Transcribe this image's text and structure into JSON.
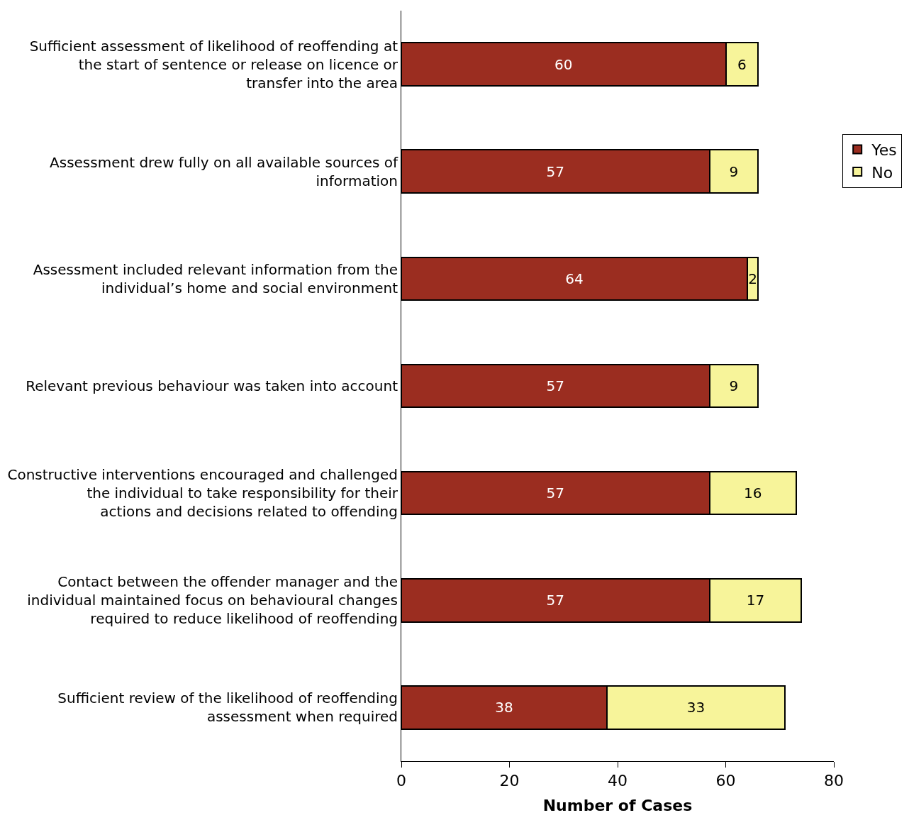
{
  "chart_data": {
    "type": "bar",
    "orientation": "horizontal",
    "stacked": true,
    "categories": [
      "Sufficient assessment of likelihood of reoffending at the start of sentence or release on licence or transfer into the area",
      "Assessment drew fully on all available sources of information",
      "Assessment included relevant information from the individual’s home and social environment",
      "Relevant previous behaviour was taken into account",
      "Constructive interventions encouraged and challenged the individual to take responsibility for their actions and decisions related to offending",
      "Contact between the offender manager and the individual maintained focus on behavioural changes required to reduce likelihood of reoffending",
      "Sufficient review of the likelihood of reoffending assessment when required"
    ],
    "series": [
      {
        "name": "Yes",
        "color": "#9b2d20",
        "values": [
          60,
          57,
          64,
          57,
          57,
          57,
          38
        ]
      },
      {
        "name": "No",
        "color": "#f7f49a",
        "values": [
          6,
          9,
          2,
          9,
          16,
          17,
          33
        ]
      }
    ],
    "xlabel": "Number of Cases",
    "xlim": [
      0,
      80
    ],
    "xticks": [
      0,
      20,
      40,
      60,
      80
    ],
    "data_labels": true,
    "legend": "right"
  }
}
